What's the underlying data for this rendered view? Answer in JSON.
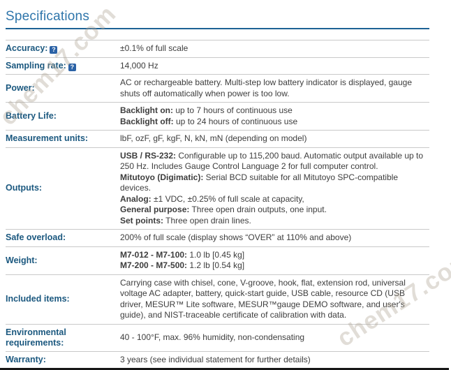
{
  "page": {
    "title": "Specifications",
    "watermark": "chem17.com"
  },
  "icons": {
    "help": "?"
  },
  "colors": {
    "title_blue": "#2f76ab",
    "title_rule_blue": "#1d6295",
    "label_blue": "#1b587f",
    "body_text": "#3d3d3d",
    "separator_gray": "#c9c9c9",
    "bottom_border": "#161616",
    "help_icon_bg": "#2b62a6"
  },
  "table": {
    "rows": [
      {
        "label": "Accuracy:",
        "help": true,
        "lines": [
          [
            {
              "text": "±0.1% of full scale"
            }
          ]
        ]
      },
      {
        "label": "Sampling rate:",
        "help": true,
        "lines": [
          [
            {
              "text": "14,000 Hz"
            }
          ]
        ]
      },
      {
        "label": "Power:",
        "help": false,
        "lines": [
          [
            {
              "text": "AC or rechargeable battery. Multi-step low battery indicator is displayed, gauge shuts off automatically when power is too low."
            }
          ]
        ]
      },
      {
        "label": "Battery Life:",
        "help": false,
        "lines": [
          [
            {
              "bold": "Backlight on:"
            },
            {
              "text": " up to 7 hours of continuous use"
            }
          ],
          [
            {
              "bold": "Backlight off:"
            },
            {
              "text": " up to 24 hours of continuous use"
            }
          ]
        ]
      },
      {
        "label": "Measurement units:",
        "help": false,
        "lines": [
          [
            {
              "text": "lbF, ozF, gF, kgF, N, kN, mN (depending on model)"
            }
          ]
        ]
      },
      {
        "label": "Outputs:",
        "help": false,
        "lines": [
          [
            {
              "bold": "USB / RS-232:"
            },
            {
              "text": " Configurable up to 115,200 baud. Automatic output available up to 250 Hz. Includes Gauge Control Language 2 for full computer control."
            }
          ],
          [
            {
              "bold": "Mitutoyo (Digimatic):"
            },
            {
              "text": " Serial BCD suitable for all Mitutoyo SPC-compatible devices."
            }
          ],
          [
            {
              "bold": "Analog:"
            },
            {
              "text": " ±1 VDC, ±0.25% of full scale at capacity,"
            }
          ],
          [
            {
              "bold": "General purpose:"
            },
            {
              "text": " Three open drain outputs, one input."
            }
          ],
          [
            {
              "bold": "Set points:"
            },
            {
              "text": " Three open drain lines."
            }
          ]
        ]
      },
      {
        "label": "Safe overload:",
        "help": false,
        "lines": [
          [
            {
              "text": "200% of full scale (display shows “OVER” at 110% and above)"
            }
          ]
        ]
      },
      {
        "label": "Weight:",
        "help": false,
        "lines": [
          [
            {
              "bold": "M7-012 - M7-100:"
            },
            {
              "text": " 1.0 lb [0.45 kg]"
            }
          ],
          [
            {
              "bold": "M7-200 - M7-500:"
            },
            {
              "text": " 1.2 lb [0.54 kg]"
            }
          ]
        ]
      },
      {
        "label": "Included items:",
        "help": false,
        "lines": [
          [
            {
              "text": "Carrying case with chisel, cone, V-groove, hook, flat, extension rod, universal voltage AC adapter, battery, quick-start guide, USB cable, resource CD (USB driver, MESUR™ Lite software, MESUR™gauge DEMO software, and user's guide), and NIST-traceable certificate of calibration with data."
            }
          ]
        ]
      },
      {
        "label": "Environmental requirements:",
        "help": false,
        "lines": [
          [
            {
              "text": "40 - 100°F, max. 96% humidity, non-condensating"
            }
          ]
        ]
      },
      {
        "label": "Warranty:",
        "help": false,
        "lines": [
          [
            {
              "text": "3 years (see individual statement for further details)"
            }
          ]
        ]
      }
    ]
  }
}
